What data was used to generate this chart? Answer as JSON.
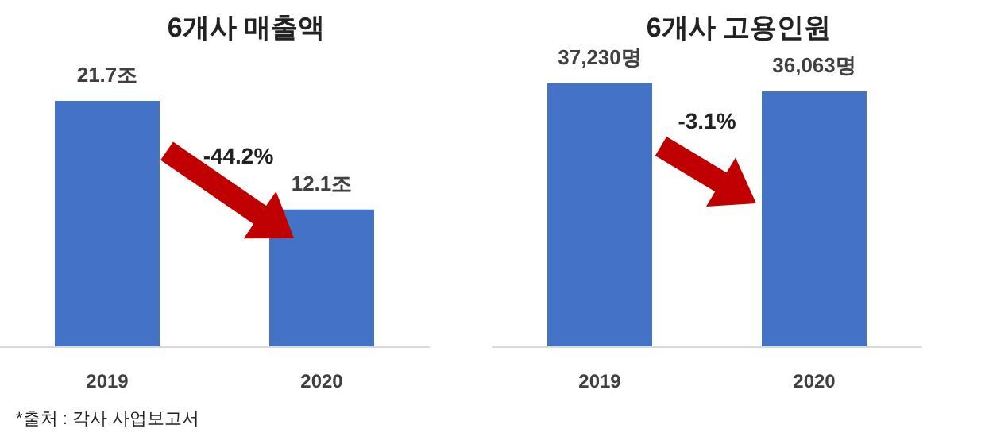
{
  "chart_data": [
    {
      "type": "bar",
      "title": "6개사 매출액",
      "categories": [
        "2019",
        "2020"
      ],
      "values": [
        21.7,
        12.1
      ],
      "value_labels": [
        "21.7조",
        "12.1조"
      ],
      "color": "#4472c4",
      "tick_labels": "x",
      "annotations": [
        "-44.2%",
        "*출처 : 각사 사업보고서"
      ]
    },
    {
      "type": "bar",
      "title": "6개사 고용인원",
      "categories": [
        "2019",
        "2020"
      ],
      "values": [
        37230,
        36063
      ],
      "value_labels": [
        "37,230명",
        "36,063명"
      ],
      "color": "#4472c4",
      "tick_labels": "x",
      "annotations": [
        "-3.1%"
      ]
    }
  ]
}
